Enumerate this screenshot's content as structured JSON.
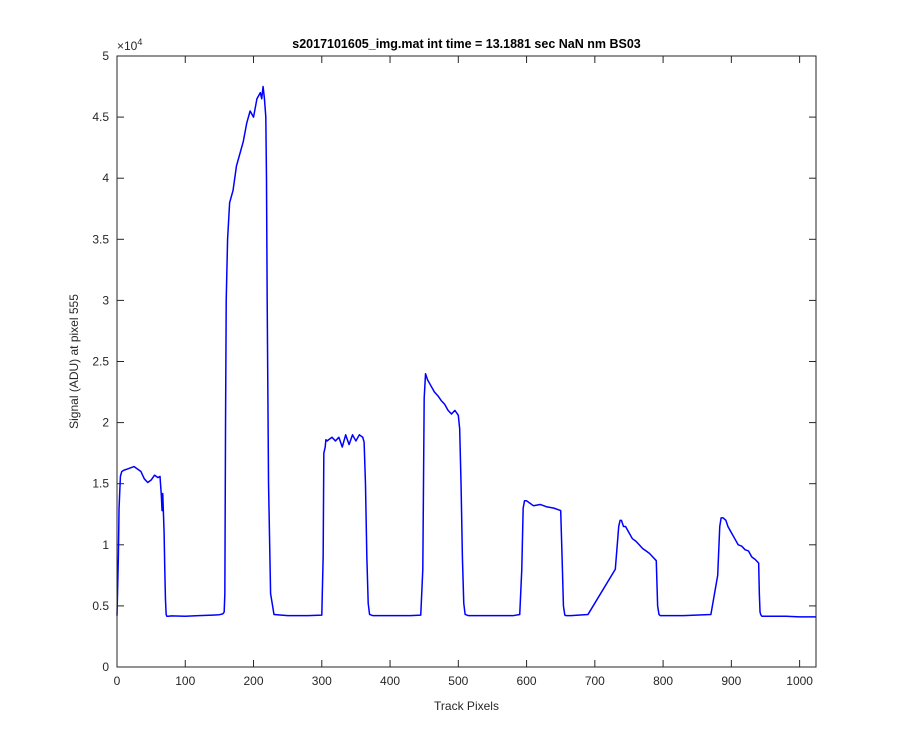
{
  "chart_data": {
    "type": "line",
    "title": "s2017101605_img.mat int time = 13.1881 sec  NaN nm BS03",
    "xlabel": "Track Pixels",
    "ylabel": "Signal (ADU) at pixel 555",
    "xlim": [
      0,
      1024
    ],
    "ylim": [
      0,
      50000
    ],
    "xticks": [
      0,
      100,
      200,
      300,
      400,
      500,
      600,
      700,
      800,
      900,
      1000
    ],
    "xtick_labels": [
      "0",
      "100",
      "200",
      "300",
      "400",
      "500",
      "600",
      "700",
      "800",
      "900",
      "1000"
    ],
    "yticks": [
      0,
      5000,
      10000,
      15000,
      20000,
      25000,
      30000,
      35000,
      40000,
      45000,
      50000
    ],
    "ytick_labels": [
      "0",
      "0.5",
      "1",
      "1.5",
      "2",
      "2.5",
      "3",
      "3.5",
      "4",
      "4.5",
      "5"
    ],
    "y_exponent_base": "×10",
    "y_exponent_power": "4",
    "grid": false,
    "line_color": "#0000ff",
    "axis_color": "#262626",
    "series": [
      {
        "x": [
          0,
          2,
          3,
          5,
          7,
          10,
          15,
          20,
          25,
          30,
          35,
          40,
          45,
          50,
          55,
          60,
          63,
          65,
          66,
          67,
          68,
          69,
          70,
          71,
          72,
          73,
          75,
          80,
          100,
          120,
          140,
          150,
          155,
          157,
          158,
          159,
          160,
          162,
          165,
          170,
          175,
          180,
          185,
          190,
          195,
          200,
          205,
          210,
          212,
          214,
          216,
          218,
          219,
          220,
          222,
          225,
          230,
          250,
          280,
          300,
          302,
          303,
          305,
          306,
          308,
          310,
          315,
          320,
          325,
          330,
          335,
          340,
          345,
          350,
          355,
          360,
          362,
          364,
          366,
          368,
          370,
          375,
          400,
          430,
          445,
          448,
          450,
          452,
          455,
          460,
          465,
          470,
          475,
          480,
          485,
          490,
          495,
          500,
          502,
          504,
          506,
          508,
          510,
          515,
          540,
          580,
          590,
          593,
          595,
          597,
          600,
          605,
          610,
          620,
          630,
          640,
          650,
          652,
          654,
          656,
          658,
          660,
          665,
          690,
          730,
          735,
          737,
          739,
          742,
          745,
          750,
          755,
          760,
          765,
          770,
          775,
          780,
          785,
          790,
          792,
          794,
          796,
          798,
          800,
          805,
          830,
          870,
          880,
          883,
          885,
          888,
          892,
          895,
          900,
          905,
          910,
          915,
          920,
          925,
          930,
          935,
          940,
          941,
          942,
          943,
          944,
          945,
          950,
          980,
          1000,
          1024
        ],
        "y": [
          4200,
          9000,
          13000,
          15600,
          16000,
          16100,
          16200,
          16300,
          16400,
          16200,
          16000,
          15400,
          15100,
          15300,
          15700,
          15500,
          15600,
          14000,
          12800,
          14200,
          12600,
          11000,
          8000,
          5500,
          4300,
          4150,
          4150,
          4180,
          4150,
          4200,
          4250,
          4280,
          4350,
          4500,
          6000,
          20000,
          30000,
          35000,
          38000,
          39000,
          41000,
          42000,
          43000,
          44500,
          45500,
          45000,
          46500,
          47000,
          46500,
          47500,
          46500,
          45000,
          40000,
          30000,
          15000,
          6000,
          4300,
          4200,
          4200,
          4250,
          9000,
          17500,
          18000,
          18600,
          18500,
          18600,
          18800,
          18500,
          18800,
          18000,
          19000,
          18200,
          19000,
          18500,
          19000,
          18800,
          18400,
          15000,
          9000,
          5200,
          4300,
          4200,
          4200,
          4200,
          4250,
          8000,
          22000,
          24000,
          23500,
          23000,
          22500,
          22200,
          21800,
          21500,
          21000,
          20700,
          21000,
          20600,
          19500,
          15000,
          9000,
          5200,
          4300,
          4200,
          4200,
          4200,
          4300,
          8000,
          13000,
          13600,
          13600,
          13400,
          13200,
          13300,
          13100,
          13000,
          12800,
          9000,
          5000,
          4250,
          4200,
          4200,
          4200,
          4300,
          8000,
          11500,
          12000,
          12000,
          11500,
          11500,
          11000,
          10500,
          10300,
          10000,
          9700,
          9500,
          9300,
          9000,
          8700,
          5000,
          4300,
          4200,
          4200,
          4200,
          4200,
          4200,
          4300,
          7500,
          11500,
          12200,
          12200,
          12000,
          11500,
          11000,
          10500,
          10000,
          9900,
          9600,
          9500,
          9000,
          8800,
          8500,
          6000,
          4500,
          4300,
          4200,
          4150,
          4150,
          4150,
          4100,
          4100
        ]
      }
    ]
  }
}
